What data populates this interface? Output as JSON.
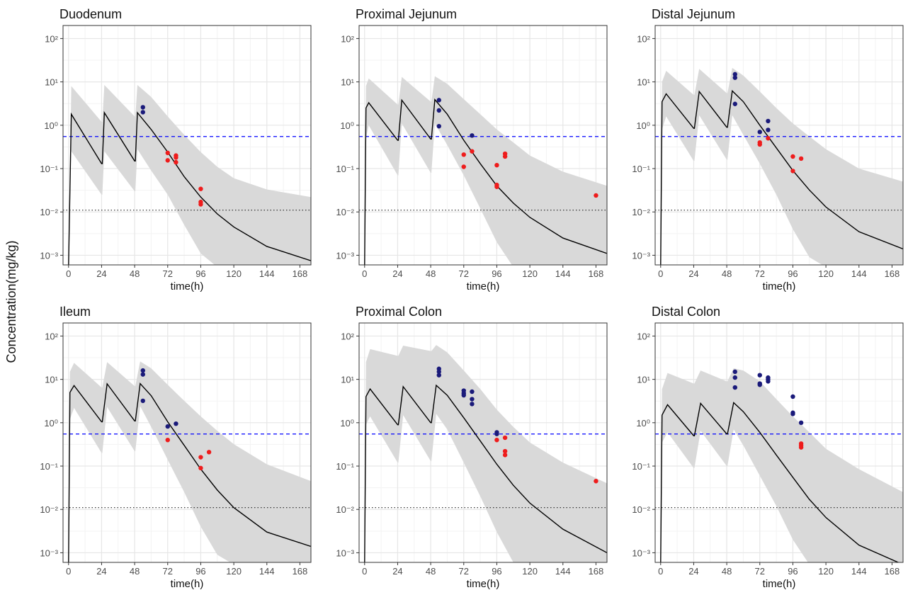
{
  "ylabel": "Concentration(mg/kg)",
  "colors": {
    "ribbon": "#d9d9d9",
    "median_line": "#000000",
    "blue_points": "#1a1a7a",
    "red_points": "#ee1c1c",
    "blue_ref_line": "#0000ff",
    "black_ref_line": "#222222",
    "grid_major": "#e6e6e6",
    "grid_minor": "#f3f3f3"
  },
  "chart_data": [
    {
      "type": "line",
      "title": "Duodenum",
      "xlabel": "time(h)",
      "xlim": [
        -4,
        176
      ],
      "ylim": [
        0.0006,
        200
      ],
      "log_y": true,
      "xticks": [
        0,
        24,
        48,
        72,
        96,
        120,
        144,
        168
      ],
      "yticks": [
        0.001,
        0.01,
        0.1,
        1,
        10,
        100
      ],
      "hlines": {
        "blue_dashed": 0.55,
        "black_dotted": 0.011
      },
      "median": {
        "x": [
          0,
          2,
          24,
          24.5,
          26,
          48,
          48.5,
          50,
          60,
          72,
          84,
          96,
          108,
          120,
          144,
          176
        ],
        "y": [
          0.0005,
          1.8,
          0.13,
          0.13,
          1.95,
          0.15,
          0.15,
          1.95,
          0.8,
          0.24,
          0.065,
          0.022,
          0.009,
          0.0045,
          0.0016,
          0.00075
        ]
      },
      "ribbon": {
        "x": [
          0,
          2,
          24,
          24.5,
          26,
          48,
          48.5,
          50,
          60,
          72,
          84,
          96,
          108,
          120,
          144,
          176
        ],
        "upper": [
          0.0005,
          8,
          1.2,
          1.2,
          8.5,
          1.6,
          1.6,
          8.5,
          4.5,
          1.6,
          0.6,
          0.24,
          0.11,
          0.06,
          0.033,
          0.022
        ],
        "lower": [
          0.0005,
          0.25,
          0.025,
          0.025,
          0.25,
          0.03,
          0.03,
          0.28,
          0.09,
          0.025,
          0.005,
          0.0011,
          0.0003,
          0.0001,
          5e-05,
          3e-05
        ]
      },
      "blue_points": {
        "x": [
          54,
          54
        ],
        "y": [
          2.6,
          2.0
        ]
      },
      "red_points": {
        "x": [
          72,
          72,
          78,
          78,
          78,
          96,
          96,
          96
        ],
        "y": [
          0.23,
          0.155,
          0.2,
          0.18,
          0.14,
          0.034,
          0.017,
          0.015
        ]
      }
    },
    {
      "type": "line",
      "title": "Proximal Jejunum",
      "xlabel": "time(h)",
      "xlim": [
        -4,
        176
      ],
      "ylim": [
        0.0006,
        200
      ],
      "log_y": true,
      "xticks": [
        0,
        24,
        48,
        72,
        96,
        120,
        144,
        168
      ],
      "yticks": [
        0.001,
        0.01,
        0.1,
        1,
        10,
        100
      ],
      "hlines": {
        "blue_dashed": 0.55,
        "black_dotted": 0.011
      },
      "median": {
        "x": [
          0,
          1,
          3,
          24,
          24.5,
          27,
          48,
          48.5,
          51,
          60,
          72,
          84,
          96,
          108,
          120,
          144,
          176
        ],
        "y": [
          0.0005,
          2.5,
          3.3,
          0.45,
          0.45,
          3.8,
          0.48,
          0.48,
          3.9,
          1.8,
          0.45,
          0.13,
          0.04,
          0.016,
          0.0075,
          0.0025,
          0.0011
        ]
      },
      "ribbon": {
        "x": [
          0,
          1,
          3,
          24,
          24.5,
          27,
          48,
          48.5,
          51,
          60,
          72,
          84,
          96,
          108,
          120,
          144,
          176
        ],
        "upper": [
          0.0005,
          8,
          12,
          3,
          3,
          13,
          3.5,
          3.5,
          13.5,
          9,
          4,
          1.8,
          0.8,
          0.4,
          0.2,
          0.085,
          0.04
        ],
        "lower": [
          0.0005,
          0.5,
          1.0,
          0.07,
          0.07,
          1.1,
          0.08,
          0.08,
          1.1,
          0.35,
          0.07,
          0.012,
          0.002,
          0.0005,
          0.0002,
          8e-05,
          5e-05
        ]
      },
      "blue_points": {
        "x": [
          54,
          54,
          54,
          78
        ],
        "y": [
          3.8,
          2.2,
          0.95,
          0.58
        ]
      },
      "red_points": {
        "x": [
          72,
          72,
          78,
          96,
          96,
          96,
          102,
          102,
          168
        ],
        "y": [
          0.21,
          0.11,
          0.25,
          0.12,
          0.042,
          0.038,
          0.22,
          0.19,
          0.024
        ]
      }
    },
    {
      "type": "line",
      "title": "Distal Jejunum",
      "xlabel": "time(h)",
      "xlim": [
        -4,
        176
      ],
      "ylim": [
        0.0006,
        200
      ],
      "log_y": true,
      "xticks": [
        0,
        24,
        48,
        72,
        96,
        120,
        144,
        168
      ],
      "yticks": [
        0.001,
        0.01,
        0.1,
        1,
        10,
        100
      ],
      "hlines": {
        "blue_dashed": 0.55,
        "black_dotted": 0.011
      },
      "median": {
        "x": [
          0,
          1,
          4,
          24,
          24.5,
          28,
          48,
          48.5,
          52,
          60,
          72,
          84,
          96,
          108,
          120,
          144,
          176
        ],
        "y": [
          0.0005,
          3.5,
          5.3,
          0.85,
          0.85,
          6.0,
          0.9,
          0.9,
          6.2,
          3.5,
          1.0,
          0.3,
          0.09,
          0.032,
          0.013,
          0.0035,
          0.0014
        ]
      },
      "ribbon": {
        "x": [
          0,
          1,
          4,
          24,
          24.5,
          28,
          48,
          48.5,
          52,
          60,
          72,
          84,
          96,
          108,
          120,
          144,
          176
        ],
        "upper": [
          0.0005,
          10,
          18,
          5,
          5,
          20,
          5.5,
          5.5,
          21,
          14,
          6,
          2.5,
          1.1,
          0.55,
          0.28,
          0.1,
          0.05
        ],
        "lower": [
          0.0005,
          0.8,
          1.6,
          0.15,
          0.15,
          1.7,
          0.16,
          0.16,
          1.7,
          0.6,
          0.13,
          0.025,
          0.004,
          0.0009,
          0.0003,
          0.0001,
          6e-05
        ]
      },
      "blue_points": {
        "x": [
          54,
          54,
          54,
          72,
          78,
          78
        ],
        "y": [
          15,
          12.5,
          3.1,
          0.7,
          1.25,
          0.78
        ]
      },
      "red_points": {
        "x": [
          72,
          72,
          78,
          96,
          96,
          102
        ],
        "y": [
          0.4,
          0.36,
          0.5,
          0.19,
          0.088,
          0.17
        ]
      }
    },
    {
      "type": "line",
      "title": "Ileum",
      "xlabel": "time(h)",
      "xlim": [
        -4,
        176
      ],
      "ylim": [
        0.0006,
        200
      ],
      "log_y": true,
      "xticks": [
        0,
        24,
        48,
        72,
        96,
        120,
        144,
        168
      ],
      "yticks": [
        0.001,
        0.01,
        0.1,
        1,
        10,
        100
      ],
      "hlines": {
        "blue_dashed": 0.55,
        "black_dotted": 0.011
      },
      "median": {
        "x": [
          0,
          1,
          4,
          24,
          24.5,
          28,
          48,
          48.5,
          52,
          60,
          72,
          84,
          96,
          108,
          120,
          144,
          176
        ],
        "y": [
          0.0005,
          5,
          7.2,
          1.05,
          1.05,
          7.9,
          1.1,
          1.1,
          8.0,
          4.2,
          1.05,
          0.3,
          0.085,
          0.028,
          0.011,
          0.003,
          0.0014
        ]
      },
      "ribbon": {
        "x": [
          0,
          1,
          4,
          24,
          24.5,
          28,
          48,
          48.5,
          52,
          60,
          72,
          84,
          96,
          108,
          120,
          144,
          176
        ],
        "upper": [
          0.0005,
          15,
          24,
          6.5,
          6.5,
          25,
          7,
          7,
          26,
          18,
          7.5,
          3.2,
          1.4,
          0.65,
          0.32,
          0.11,
          0.045
        ],
        "lower": [
          0.0005,
          1.2,
          2.2,
          0.2,
          0.2,
          2.3,
          0.22,
          0.22,
          2.4,
          0.8,
          0.14,
          0.025,
          0.004,
          0.0009,
          0.0003,
          0.0001,
          6e-05
        ]
      },
      "blue_points": {
        "x": [
          54,
          54,
          54,
          72,
          78
        ],
        "y": [
          16,
          13,
          3.2,
          0.82,
          0.95
        ]
      },
      "red_points": {
        "x": [
          72,
          96,
          96,
          102
        ],
        "y": [
          0.4,
          0.16,
          0.09,
          0.21
        ]
      }
    },
    {
      "type": "line",
      "title": "Proximal Colon",
      "xlabel": "time(h)",
      "xlim": [
        -4,
        176
      ],
      "ylim": [
        0.0006,
        200
      ],
      "log_y": true,
      "xticks": [
        0,
        24,
        48,
        72,
        96,
        120,
        144,
        168
      ],
      "yticks": [
        0.001,
        0.01,
        0.1,
        1,
        10,
        100
      ],
      "hlines": {
        "blue_dashed": 0.55,
        "black_dotted": 0.011
      },
      "median": {
        "x": [
          0,
          1,
          4,
          24,
          24.5,
          28,
          48,
          48.5,
          52,
          60,
          72,
          84,
          96,
          108,
          120,
          144,
          176
        ],
        "y": [
          0.0005,
          4,
          6.0,
          0.9,
          0.9,
          6.8,
          1.0,
          1.0,
          7.3,
          4.3,
          1.3,
          0.38,
          0.11,
          0.036,
          0.014,
          0.0035,
          0.001
        ]
      },
      "ribbon": {
        "x": [
          0,
          1,
          4,
          24,
          24.5,
          28,
          48,
          48.5,
          52,
          60,
          72,
          84,
          96,
          108,
          120,
          144,
          176
        ],
        "upper": [
          0.0005,
          25,
          50,
          35,
          35,
          60,
          45,
          45,
          62,
          42,
          16,
          6,
          2.0,
          0.8,
          0.35,
          0.12,
          0.04
        ],
        "lower": [
          0.0005,
          0.9,
          1.4,
          0.12,
          0.12,
          1.5,
          0.13,
          0.13,
          1.6,
          0.7,
          0.12,
          0.02,
          0.003,
          0.0006,
          0.00025,
          0.0001,
          6e-05
        ]
      },
      "blue_points": {
        "x": [
          54,
          54,
          54,
          72,
          72,
          72,
          78,
          78,
          78,
          96,
          96
        ],
        "y": [
          17.5,
          15,
          12.5,
          5.5,
          4.8,
          4.3,
          5.2,
          3.5,
          2.7,
          0.6,
          0.55
        ]
      },
      "red_points": {
        "x": [
          96,
          102,
          102,
          102,
          168
        ],
        "y": [
          0.4,
          0.45,
          0.22,
          0.18,
          0.045
        ]
      }
    },
    {
      "type": "line",
      "title": "Distal Colon",
      "xlabel": "time(h)",
      "xlim": [
        -4,
        176
      ],
      "ylim": [
        0.0006,
        200
      ],
      "log_y": true,
      "xticks": [
        0,
        24,
        48,
        72,
        96,
        120,
        144,
        168
      ],
      "yticks": [
        0.001,
        0.01,
        0.1,
        1,
        10,
        100
      ],
      "hlines": {
        "blue_dashed": 0.55,
        "black_dotted": 0.011
      },
      "median": {
        "x": [
          0,
          1,
          5,
          24,
          24.5,
          29,
          48,
          48.5,
          53,
          60,
          72,
          84,
          96,
          108,
          120,
          144,
          176
        ],
        "y": [
          0.0005,
          1.5,
          2.6,
          0.5,
          0.5,
          2.8,
          0.55,
          0.55,
          2.9,
          1.8,
          0.6,
          0.18,
          0.055,
          0.017,
          0.0065,
          0.0015,
          0.0005
        ]
      },
      "ribbon": {
        "x": [
          0,
          1,
          5,
          24,
          24.5,
          29,
          48,
          48.5,
          53,
          60,
          72,
          84,
          96,
          108,
          120,
          144,
          176
        ],
        "upper": [
          0.0005,
          6,
          14,
          8,
          8,
          16,
          9,
          9,
          18,
          16,
          9,
          3.5,
          1.4,
          0.6,
          0.25,
          0.085,
          0.025
        ],
        "lower": [
          0.0005,
          0.35,
          0.6,
          0.09,
          0.09,
          0.65,
          0.1,
          0.1,
          0.7,
          0.3,
          0.06,
          0.012,
          0.002,
          0.0005,
          0.0002,
          0.0001,
          6e-05
        ]
      },
      "blue_points": {
        "x": [
          54,
          54,
          54,
          72,
          72,
          72,
          78,
          78,
          78,
          96,
          96,
          96,
          102
        ],
        "y": [
          15,
          11,
          6.5,
          12.5,
          8,
          7.5,
          11,
          10,
          9,
          4,
          1.7,
          1.6,
          1.0
        ]
      },
      "red_points": {
        "x": [
          102,
          102,
          102
        ],
        "y": [
          0.33,
          0.3,
          0.27
        ]
      }
    }
  ]
}
